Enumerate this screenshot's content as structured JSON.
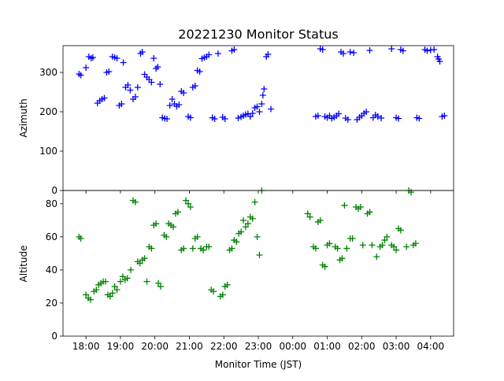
{
  "chart_data": [
    {
      "type": "scatter",
      "title": "20221230 Monitor Status",
      "xlabel": "",
      "ylabel": "Azimuth",
      "ylim": [
        0,
        368
      ],
      "yticks": [
        0,
        100,
        200,
        300
      ],
      "marker": "+",
      "series": [
        {
          "color": "#0000ff",
          "points": [
            [
              "17:48",
              296
            ],
            [
              "17:51",
              293
            ],
            [
              "18:00",
              312
            ],
            [
              "18:05",
              340
            ],
            [
              "18:09",
              336
            ],
            [
              "18:12",
              338
            ],
            [
              "18:20",
              222
            ],
            [
              "18:24",
              228
            ],
            [
              "18:28",
              232
            ],
            [
              "18:32",
              235
            ],
            [
              "18:36",
              300
            ],
            [
              "18:40",
              302
            ],
            [
              "18:46",
              340
            ],
            [
              "18:50",
              338
            ],
            [
              "18:54",
              336
            ],
            [
              "18:58",
              216
            ],
            [
              "19:02",
              220
            ],
            [
              "19:05",
              325
            ],
            [
              "19:09",
              262
            ],
            [
              "19:13",
              268
            ],
            [
              "19:17",
              255
            ],
            [
              "19:22",
              232
            ],
            [
              "19:26",
              238
            ],
            [
              "19:30",
              262
            ],
            [
              "19:35",
              348
            ],
            [
              "19:38",
              352
            ],
            [
              "19:42",
              295
            ],
            [
              "19:46",
              288
            ],
            [
              "19:50",
              282
            ],
            [
              "19:54",
              275
            ],
            [
              "19:58",
              336
            ],
            [
              "20:02",
              310
            ],
            [
              "20:05",
              314
            ],
            [
              "20:09",
              270
            ],
            [
              "20:13",
              185
            ],
            [
              "20:17",
              183
            ],
            [
              "20:21",
              182
            ],
            [
              "20:26",
              216
            ],
            [
              "20:30",
              232
            ],
            [
              "20:34",
              220
            ],
            [
              "20:38",
              214
            ],
            [
              "20:42",
              218
            ],
            [
              "20:46",
              252
            ],
            [
              "20:50",
              248
            ],
            [
              "20:58",
              188
            ],
            [
              "21:02",
              185
            ],
            [
              "21:06",
              262
            ],
            [
              "21:10",
              266
            ],
            [
              "21:14",
              305
            ],
            [
              "21:18",
              302
            ],
            [
              "21:22",
              335
            ],
            [
              "21:26",
              338
            ],
            [
              "21:30",
              340
            ],
            [
              "21:34",
              345
            ],
            [
              "21:40",
              185
            ],
            [
              "21:44",
              182
            ],
            [
              "21:50",
              348
            ],
            [
              "21:58",
              186
            ],
            [
              "22:02",
              182
            ],
            [
              "22:14",
              355
            ],
            [
              "22:18",
              358
            ],
            [
              "22:25",
              184
            ],
            [
              "22:30",
              187
            ],
            [
              "22:34",
              190
            ],
            [
              "22:38",
              193
            ],
            [
              "22:42",
              195
            ],
            [
              "22:46",
              188
            ],
            [
              "22:50",
              196
            ],
            [
              "22:54",
              210
            ],
            [
              "22:58",
              213
            ],
            [
              "23:02",
              200
            ],
            [
              "23:06",
              220
            ],
            [
              "23:08",
              242
            ],
            [
              "23:10",
              258
            ],
            [
              "23:14",
              340
            ],
            [
              "23:17",
              346
            ],
            [
              "23:22",
              207
            ],
            [
              "24:40",
              188
            ],
            [
              "24:44",
              190
            ],
            [
              "24:48",
              360
            ],
            [
              "24:52",
              358
            ],
            [
              "24:56",
              188
            ],
            [
              "25:00",
              185
            ],
            [
              "25:04",
              190
            ],
            [
              "25:08",
              183
            ],
            [
              "25:12",
              186
            ],
            [
              "25:16",
              190
            ],
            [
              "25:20",
              195
            ],
            [
              "25:24",
              352
            ],
            [
              "25:28",
              348
            ],
            [
              "25:32",
              184
            ],
            [
              "25:36",
              180
            ],
            [
              "25:40",
              352
            ],
            [
              "25:46",
              350
            ],
            [
              "25:52",
              180
            ],
            [
              "25:56",
              186
            ],
            [
              "26:00",
              190
            ],
            [
              "26:04",
              196
            ],
            [
              "26:08",
              200
            ],
            [
              "26:14",
              356
            ],
            [
              "26:20",
              185
            ],
            [
              "26:24",
              192
            ],
            [
              "26:28",
              188
            ],
            [
              "26:34",
              184
            ],
            [
              "26:52",
              360
            ],
            [
              "27:00",
              185
            ],
            [
              "27:04",
              183
            ],
            [
              "27:08",
              358
            ],
            [
              "27:12",
              355
            ],
            [
              "27:36",
              185
            ],
            [
              "27:40",
              183
            ],
            [
              "27:50",
              358
            ],
            [
              "27:54",
              355
            ],
            [
              "28:00",
              357
            ],
            [
              "28:06",
              358
            ],
            [
              "28:12",
              340
            ],
            [
              "28:14",
              334
            ],
            [
              "28:16",
              328
            ],
            [
              "28:20",
              188
            ],
            [
              "28:24",
              190
            ]
          ]
        }
      ]
    },
    {
      "type": "scatter",
      "title": "",
      "xlabel": "Monitor Time (JST)",
      "ylabel": "Altitude",
      "ylim": [
        0,
        88
      ],
      "yticks": [
        0,
        20,
        40,
        60,
        80
      ],
      "xticks": [
        "18:00",
        "19:00",
        "20:00",
        "21:00",
        "22:00",
        "23:00",
        "00:00",
        "01:00",
        "02:00",
        "03:00",
        "04:00"
      ],
      "marker": "+",
      "series": [
        {
          "color": "#008000",
          "points": [
            [
              "17:48",
              60
            ],
            [
              "17:51",
              59
            ],
            [
              "18:00",
              25
            ],
            [
              "18:04",
              23
            ],
            [
              "18:08",
              22
            ],
            [
              "18:14",
              27
            ],
            [
              "18:18",
              28
            ],
            [
              "18:22",
              31
            ],
            [
              "18:26",
              32
            ],
            [
              "18:30",
              33
            ],
            [
              "18:34",
              33
            ],
            [
              "18:38",
              25
            ],
            [
              "18:42",
              24
            ],
            [
              "18:46",
              26
            ],
            [
              "18:50",
              30
            ],
            [
              "18:54",
              28
            ],
            [
              "19:00",
              33
            ],
            [
              "19:04",
              36
            ],
            [
              "19:08",
              34
            ],
            [
              "19:12",
              35
            ],
            [
              "19:18",
              40
            ],
            [
              "19:22",
              82
            ],
            [
              "19:26",
              81
            ],
            [
              "19:30",
              45
            ],
            [
              "19:34",
              44
            ],
            [
              "19:38",
              46
            ],
            [
              "19:42",
              47
            ],
            [
              "19:46",
              33
            ],
            [
              "19:50",
              54
            ],
            [
              "19:54",
              53
            ],
            [
              "19:58",
              67
            ],
            [
              "20:02",
              68
            ],
            [
              "20:06",
              32
            ],
            [
              "20:10",
              30
            ],
            [
              "20:16",
              61
            ],
            [
              "20:20",
              60
            ],
            [
              "20:24",
              68
            ],
            [
              "20:28",
              67
            ],
            [
              "20:32",
              66
            ],
            [
              "20:36",
              74
            ],
            [
              "20:40",
              75
            ],
            [
              "20:46",
              52
            ],
            [
              "20:50",
              53
            ],
            [
              "20:54",
              82
            ],
            [
              "20:58",
              80
            ],
            [
              "21:02",
              78
            ],
            [
              "21:06",
              53
            ],
            [
              "21:10",
              59
            ],
            [
              "21:14",
              60
            ],
            [
              "21:20",
              53
            ],
            [
              "21:24",
              52
            ],
            [
              "21:30",
              54
            ],
            [
              "21:34",
              54
            ],
            [
              "21:38",
              28
            ],
            [
              "21:42",
              27
            ],
            [
              "21:54",
              24
            ],
            [
              "21:58",
              25
            ],
            [
              "22:02",
              30
            ],
            [
              "22:06",
              31
            ],
            [
              "22:10",
              52
            ],
            [
              "22:14",
              53
            ],
            [
              "22:18",
              58
            ],
            [
              "22:22",
              57
            ],
            [
              "22:26",
              62
            ],
            [
              "22:30",
              63
            ],
            [
              "22:34",
              70
            ],
            [
              "22:38",
              66
            ],
            [
              "22:42",
              68
            ],
            [
              "22:46",
              72
            ],
            [
              "22:50",
              71
            ],
            [
              "22:54",
              81
            ],
            [
              "22:58",
              60
            ],
            [
              "23:02",
              49
            ],
            [
              "23:06",
              88
            ],
            [
              "24:26",
              74
            ],
            [
              "24:30",
              72
            ],
            [
              "24:36",
              54
            ],
            [
              "24:40",
              53
            ],
            [
              "24:44",
              69
            ],
            [
              "24:48",
              70
            ],
            [
              "24:52",
              43
            ],
            [
              "24:56",
              42
            ],
            [
              "25:00",
              55
            ],
            [
              "25:04",
              56
            ],
            [
              "25:14",
              54
            ],
            [
              "25:18",
              53
            ],
            [
              "25:22",
              46
            ],
            [
              "25:26",
              47
            ],
            [
              "25:30",
              79
            ],
            [
              "25:34",
              53
            ],
            [
              "25:40",
              59
            ],
            [
              "25:44",
              59
            ],
            [
              "25:50",
              78
            ],
            [
              "25:54",
              77
            ],
            [
              "25:58",
              78
            ],
            [
              "26:02",
              55
            ],
            [
              "26:10",
              74
            ],
            [
              "26:14",
              75
            ],
            [
              "26:18",
              55
            ],
            [
              "26:26",
              48
            ],
            [
              "26:32",
              54
            ],
            [
              "26:36",
              55
            ],
            [
              "26:40",
              58
            ],
            [
              "26:44",
              60
            ],
            [
              "26:52",
              55
            ],
            [
              "26:56",
              54
            ],
            [
              "27:00",
              52
            ],
            [
              "27:04",
              65
            ],
            [
              "27:08",
              64
            ],
            [
              "27:18",
              54
            ],
            [
              "27:22",
              88
            ],
            [
              "27:26",
              87
            ],
            [
              "27:30",
              55
            ],
            [
              "27:34",
              56
            ]
          ]
        }
      ]
    }
  ]
}
